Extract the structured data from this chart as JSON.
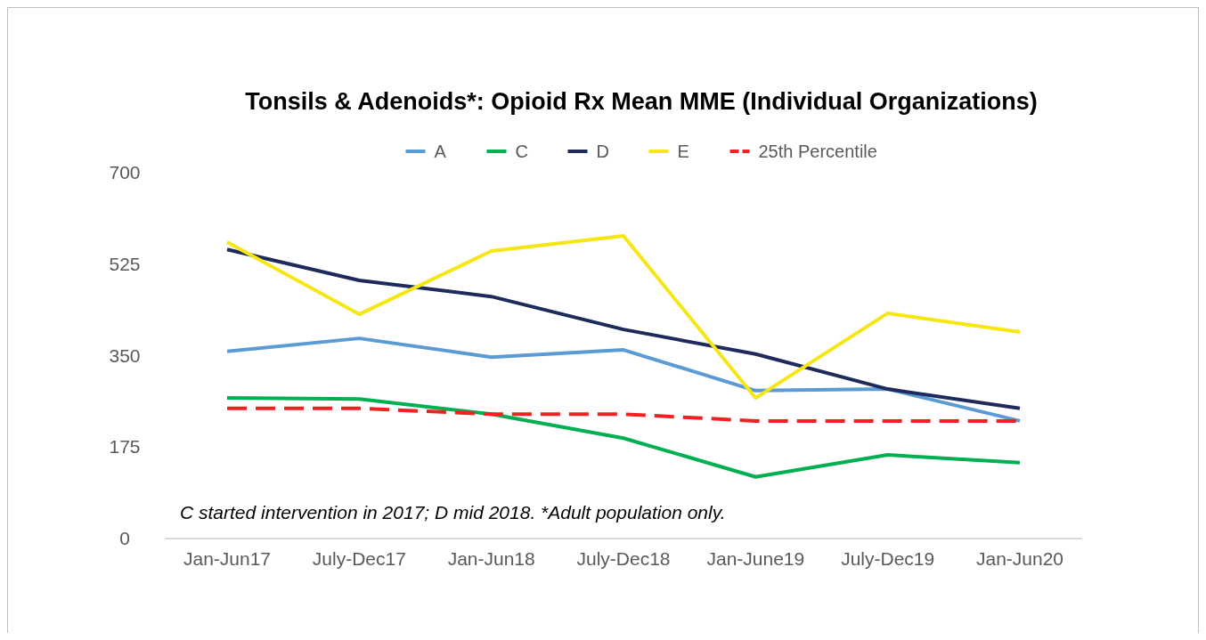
{
  "chart_data": {
    "type": "line",
    "title": "Tonsils & Adenoids*: Opioid Rx Mean MME (Individual Organizations)",
    "categories": [
      "Jan-Jun17",
      "July-Dec17",
      "Jan-Jun18",
      "July-Dec18",
      "Jan-June19",
      "July-Dec19",
      "Jan-Jun20"
    ],
    "series": [
      {
        "name": "A",
        "color": "#5b9bd5",
        "values": [
          358,
          383,
          347,
          361,
          283,
          286,
          225
        ]
      },
      {
        "name": "C",
        "color": "#00b050",
        "values": [
          269,
          267,
          238,
          192,
          118,
          160,
          145
        ]
      },
      {
        "name": "D",
        "color": "#1f2a5c",
        "values": [
          553,
          494,
          463,
          400,
          353,
          286,
          249
        ]
      },
      {
        "name": "E",
        "color": "#f5e614",
        "values": [
          567,
          429,
          550,
          579,
          269,
          431,
          395
        ]
      },
      {
        "name": "25th Percentile",
        "color": "#ee2222",
        "line_style": "dashed",
        "values": [
          249,
          249,
          238,
          238,
          225,
          225,
          225
        ]
      }
    ],
    "ylim": [
      0,
      700
    ],
    "yticks": [
      0,
      175,
      350,
      525,
      700
    ],
    "grid": false,
    "legend": "top",
    "line_style": "solid",
    "annotations": [
      "C  started intervention in 2017; D mid 2018. *Adult population only."
    ]
  }
}
